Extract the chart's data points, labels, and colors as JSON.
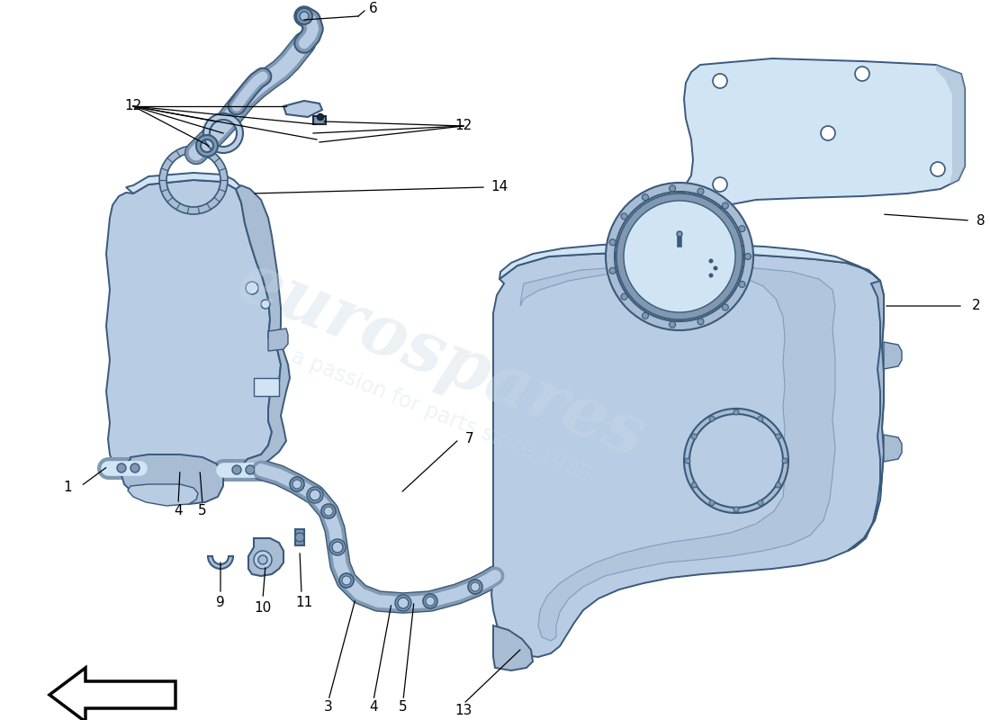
{
  "bg_color": "#ffffff",
  "fc": "#b8cce4",
  "fc_light": "#d0e4f4",
  "fc_mid": "#a8bcd4",
  "fc_dark": "#8098b0",
  "ec": "#3a5a7a",
  "lw": 1.4,
  "wm1": "eurospares",
  "wm2": "a passion for parts since 1985",
  "wm_color": "#c8d8e4",
  "label_fs": 11,
  "label_color": "#000000",
  "line_color": "#000000"
}
